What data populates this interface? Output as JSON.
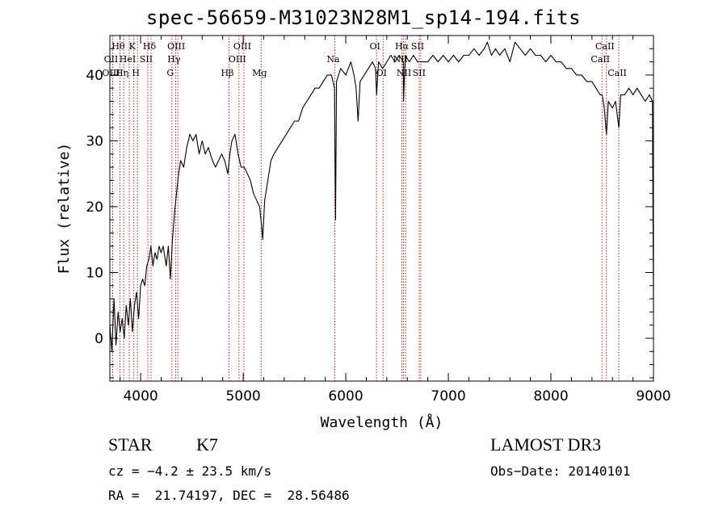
{
  "chart_data": {
    "type": "line",
    "title": "spec-56659-M31023N28M1_sp14-194.fits",
    "xlabel": "Wavelength (Å)",
    "ylabel": "Flux (relative)",
    "xlim": [
      3700,
      9000
    ],
    "ylim": [
      -6.5,
      46
    ],
    "xticks": [
      4000,
      5000,
      6000,
      7000,
      8000,
      9000
    ],
    "xtick_labels": [
      "4000",
      "5000",
      "6000",
      "7000",
      "8000",
      "9000"
    ],
    "yticks": [
      0,
      10,
      20,
      30,
      40
    ],
    "ytick_labels": [
      "0",
      "10",
      "20",
      "30",
      "40"
    ],
    "spectrum": [
      [
        3700,
        2
      ],
      [
        3720,
        -2
      ],
      [
        3740,
        6
      ],
      [
        3760,
        -1
      ],
      [
        3780,
        4
      ],
      [
        3800,
        1
      ],
      [
        3820,
        3
      ],
      [
        3840,
        0
      ],
      [
        3860,
        5
      ],
      [
        3880,
        2
      ],
      [
        3900,
        6
      ],
      [
        3920,
        1
      ],
      [
        3940,
        5
      ],
      [
        3960,
        7
      ],
      [
        3980,
        3
      ],
      [
        4000,
        8
      ],
      [
        4020,
        9
      ],
      [
        4040,
        8
      ],
      [
        4060,
        11
      ],
      [
        4080,
        12
      ],
      [
        4100,
        14
      ],
      [
        4120,
        11
      ],
      [
        4140,
        13
      ],
      [
        4160,
        12
      ],
      [
        4180,
        14
      ],
      [
        4200,
        13
      ],
      [
        4220,
        14
      ],
      [
        4250,
        11
      ],
      [
        4270,
        14
      ],
      [
        4290,
        9
      ],
      [
        4310,
        15
      ],
      [
        4330,
        19
      ],
      [
        4350,
        22
      ],
      [
        4370,
        25
      ],
      [
        4390,
        27
      ],
      [
        4420,
        26
      ],
      [
        4450,
        29
      ],
      [
        4480,
        31
      ],
      [
        4510,
        30
      ],
      [
        4540,
        31
      ],
      [
        4570,
        28
      ],
      [
        4600,
        30
      ],
      [
        4630,
        28
      ],
      [
        4660,
        29
      ],
      [
        4700,
        27
      ],
      [
        4730,
        26
      ],
      [
        4760,
        27
      ],
      [
        4790,
        28
      ],
      [
        4820,
        27
      ],
      [
        4850,
        25
      ],
      [
        4870,
        28
      ],
      [
        4890,
        30
      ],
      [
        4920,
        31
      ],
      [
        4950,
        28
      ],
      [
        4980,
        26
      ],
      [
        5010,
        26
      ],
      [
        5040,
        25
      ],
      [
        5070,
        24
      ],
      [
        5100,
        22
      ],
      [
        5130,
        21
      ],
      [
        5160,
        20
      ],
      [
        5180,
        17
      ],
      [
        5190,
        15
      ],
      [
        5210,
        21
      ],
      [
        5240,
        24
      ],
      [
        5270,
        27
      ],
      [
        5300,
        28
      ],
      [
        5340,
        29
      ],
      [
        5380,
        30
      ],
      [
        5420,
        31
      ],
      [
        5460,
        32
      ],
      [
        5500,
        33
      ],
      [
        5540,
        33
      ],
      [
        5580,
        35
      ],
      [
        5620,
        36
      ],
      [
        5660,
        37
      ],
      [
        5700,
        38
      ],
      [
        5740,
        38
      ],
      [
        5780,
        39
      ],
      [
        5820,
        40
      ],
      [
        5860,
        40
      ],
      [
        5890,
        38
      ],
      [
        5900,
        18
      ],
      [
        5910,
        39
      ],
      [
        5950,
        41
      ],
      [
        6000,
        40
      ],
      [
        6050,
        42
      ],
      [
        6080,
        40
      ],
      [
        6100,
        38
      ],
      [
        6120,
        33
      ],
      [
        6140,
        39
      ],
      [
        6180,
        40
      ],
      [
        6220,
        41
      ],
      [
        6260,
        42
      ],
      [
        6290,
        41
      ],
      [
        6300,
        37
      ],
      [
        6320,
        42
      ],
      [
        6360,
        41
      ],
      [
        6400,
        42
      ],
      [
        6440,
        43
      ],
      [
        6480,
        42
      ],
      [
        6520,
        43
      ],
      [
        6560,
        42
      ],
      [
        6563,
        36
      ],
      [
        6580,
        43
      ],
      [
        6620,
        42
      ],
      [
        6660,
        43
      ],
      [
        6700,
        42
      ],
      [
        6740,
        42
      ],
      [
        6800,
        42
      ],
      [
        6850,
        43
      ],
      [
        6900,
        42
      ],
      [
        6950,
        43
      ],
      [
        7000,
        42
      ],
      [
        7050,
        43
      ],
      [
        7100,
        42
      ],
      [
        7150,
        43
      ],
      [
        7200,
        43
      ],
      [
        7250,
        44
      ],
      [
        7300,
        43
      ],
      [
        7350,
        44
      ],
      [
        7380,
        45
      ],
      [
        7420,
        43
      ],
      [
        7460,
        44
      ],
      [
        7500,
        43
      ],
      [
        7550,
        44
      ],
      [
        7600,
        42
      ],
      [
        7650,
        45
      ],
      [
        7700,
        44
      ],
      [
        7750,
        43
      ],
      [
        7800,
        44
      ],
      [
        7850,
        43
      ],
      [
        7900,
        43
      ],
      [
        7950,
        42
      ],
      [
        8000,
        43
      ],
      [
        8050,
        42
      ],
      [
        8100,
        42
      ],
      [
        8150,
        41
      ],
      [
        8200,
        41
      ],
      [
        8250,
        40
      ],
      [
        8300,
        40
      ],
      [
        8350,
        39
      ],
      [
        8400,
        39
      ],
      [
        8440,
        38
      ],
      [
        8480,
        37
      ],
      [
        8500,
        37
      ],
      [
        8520,
        35
      ],
      [
        8542,
        31
      ],
      [
        8560,
        36
      ],
      [
        8600,
        35
      ],
      [
        8630,
        36
      ],
      [
        8662,
        32
      ],
      [
        8680,
        37
      ],
      [
        8720,
        37
      ],
      [
        8760,
        38
      ],
      [
        8800,
        37
      ],
      [
        8840,
        38
      ],
      [
        8880,
        37
      ],
      [
        8920,
        36
      ],
      [
        8960,
        37
      ],
      [
        8990,
        36
      ],
      [
        9000,
        4
      ]
    ],
    "lines": [
      {
        "label": "Hθ",
        "x": 3798,
        "row": 0
      },
      {
        "label": "OII",
        "x": 3727,
        "row": 1
      },
      {
        "label": "OIII",
        "x": 3727,
        "row": 2
      },
      {
        "label": "K",
        "x": 3934,
        "row": 0
      },
      {
        "label": "HeI",
        "x": 3889,
        "row": 1
      },
      {
        "label": "Hη",
        "x": 3835,
        "row": 2
      },
      {
        "label": "H",
        "x": 3969,
        "row": 2
      },
      {
        "label": "SII",
        "x": 4070,
        "row": 1
      },
      {
        "label": "Hδ",
        "x": 4102,
        "row": 0
      },
      {
        "label": "OIII",
        "x": 4363,
        "row": 0
      },
      {
        "label": "Hγ",
        "x": 4341,
        "row": 1
      },
      {
        "label": "G",
        "x": 4305,
        "row": 2
      },
      {
        "label": "Hβ",
        "x": 4861,
        "row": 2
      },
      {
        "label": "OIII",
        "x": 5007,
        "row": 0
      },
      {
        "label": "OIII",
        "x": 4959,
        "row": 1
      },
      {
        "label": "Mg",
        "x": 5175,
        "row": 2
      },
      {
        "label": "Na",
        "x": 5893,
        "row": 1
      },
      {
        "label": "OI",
        "x": 6300,
        "row": 0
      },
      {
        "label": "OI",
        "x": 6364,
        "row": 2
      },
      {
        "label": "Hα",
        "x": 6563,
        "row": 0
      },
      {
        "label": "SII",
        "x": 6716,
        "row": 0
      },
      {
        "label": "NII",
        "x": 6548,
        "row": 1
      },
      {
        "label": "NII",
        "x": 6583,
        "row": 2
      },
      {
        "label": "SII",
        "x": 6731,
        "row": 2
      },
      {
        "label": "CaII",
        "x": 8542,
        "row": 0
      },
      {
        "label": "CaII",
        "x": 8498,
        "row": 1
      },
      {
        "label": "CaII",
        "x": 8662,
        "row": 2
      }
    ]
  },
  "info": {
    "object_type": "STAR",
    "subclass": "K7",
    "survey": "LAMOST DR3",
    "cz": "cz = −4.2 ± 23.5 km/s",
    "obs_date": "Obs−Date: 20140101",
    "coords": "RA =  21.74197, DEC =  28.56486"
  }
}
